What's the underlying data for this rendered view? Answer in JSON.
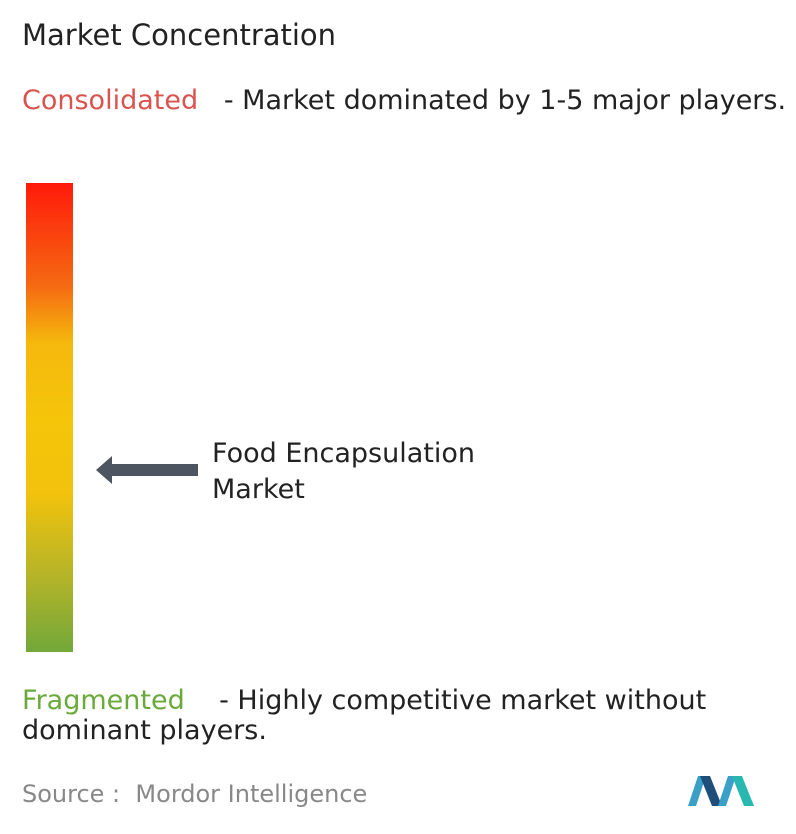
{
  "title": "Market Concentration",
  "consolidated": {
    "label": "Consolidated",
    "description": "- Market dominated by 1-5 major players."
  },
  "fragmented": {
    "label": "Fragmented",
    "description": "- Highly competitive market without dominant players."
  },
  "marker": {
    "label": "Food Encapsulation Market"
  },
  "source": {
    "label": "Source :",
    "name": "Mordor Intelligence"
  }
}
